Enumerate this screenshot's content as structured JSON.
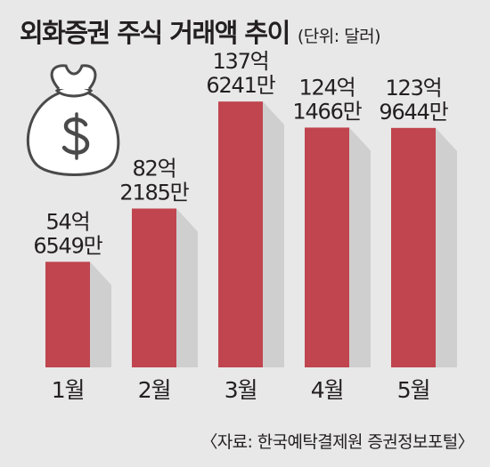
{
  "title": "외화증권 주식 거래액 추이",
  "unit": "(단위: 달러)",
  "source": "〈자료: 한국예탁결제원 증권정보포털〉",
  "icon": "money-bag-dollar-icon",
  "colors": {
    "background": "#e8e8e8",
    "bar": "#c0454e",
    "shadow": "#cfcfcf",
    "text": "#231f20"
  },
  "chart_data": {
    "type": "bar",
    "categories": [
      "1월",
      "2월",
      "3월",
      "4월",
      "5월"
    ],
    "values": [
      5465490000,
      8221850000,
      13762410000,
      12414660000,
      12396440000
    ],
    "data_labels": [
      [
        "54억",
        "6549만"
      ],
      [
        "82억",
        "2185만"
      ],
      [
        "137억",
        "6241만"
      ],
      [
        "124억",
        "1466만"
      ],
      [
        "123억",
        "9644만"
      ]
    ],
    "title": "외화증권 주식 거래액 추이",
    "ylabel": "",
    "ylim": [
      0,
      17500000000
    ],
    "grid": false
  }
}
